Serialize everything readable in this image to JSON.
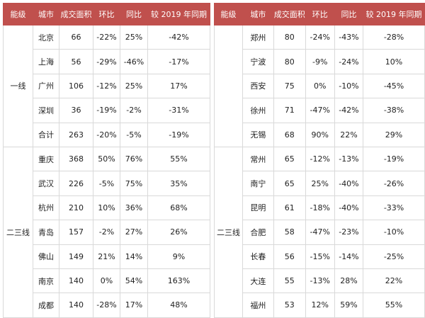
{
  "left": {
    "headers": [
      "能级",
      "城市",
      "成交面积",
      "环比",
      "同比",
      "较 2019 年同期"
    ],
    "groups": [
      {
        "tier": "一线",
        "rows": [
          [
            "北京",
            "66",
            "-22%",
            "25%",
            "-42%"
          ],
          [
            "上海",
            "56",
            "-29%",
            "-46%",
            "-17%"
          ],
          [
            "广州",
            "106",
            "-12%",
            "25%",
            "17%"
          ],
          [
            "深圳",
            "36",
            "-19%",
            "-2%",
            "-31%"
          ],
          [
            "合计",
            "263",
            "-20%",
            "-5%",
            "-19%"
          ]
        ]
      },
      {
        "tier": "二三线",
        "rows": [
          [
            "重庆",
            "368",
            "50%",
            "76%",
            "55%"
          ],
          [
            "武汉",
            "226",
            "-5%",
            "75%",
            "35%"
          ],
          [
            "杭州",
            "210",
            "10%",
            "36%",
            "68%"
          ],
          [
            "青岛",
            "157",
            "-2%",
            "27%",
            "26%"
          ],
          [
            "佛山",
            "149",
            "21%",
            "14%",
            "9%"
          ],
          [
            "南京",
            "140",
            "0%",
            "54%",
            "163%"
          ],
          [
            "成都",
            "140",
            "-28%",
            "17%",
            "48%"
          ]
        ]
      }
    ]
  },
  "right": {
    "headers": [
      "能级",
      "城市",
      "成交面积",
      "环比",
      "同比",
      "较 2019 年同期"
    ],
    "groups": [
      {
        "tier": "",
        "rows": [
          [
            "郑州",
            "80",
            "-24%",
            "-43%",
            "-28%"
          ],
          [
            "宁波",
            "80",
            "-9%",
            "-24%",
            "10%"
          ],
          [
            "西安",
            "75",
            "0%",
            "-10%",
            "-45%"
          ],
          [
            "徐州",
            "71",
            "-47%",
            "-42%",
            "-38%"
          ],
          [
            "无锡",
            "68",
            "90%",
            "22%",
            "29%"
          ]
        ]
      },
      {
        "tier": "二三线",
        "rows": [
          [
            "常州",
            "65",
            "-12%",
            "-13%",
            "-19%"
          ],
          [
            "南宁",
            "65",
            "25%",
            "-40%",
            "-26%"
          ],
          [
            "昆明",
            "61",
            "-18%",
            "-40%",
            "-33%"
          ],
          [
            "合肥",
            "58",
            "-47%",
            "-23%",
            "-10%"
          ],
          [
            "长春",
            "56",
            "-15%",
            "-14%",
            "-25%"
          ],
          [
            "大连",
            "55",
            "-13%",
            "28%",
            "22%"
          ],
          [
            "福州",
            "53",
            "12%",
            "59%",
            "55%"
          ]
        ]
      }
    ]
  },
  "colors": {
    "header_bg": "#c0504d",
    "header_text": "#ffffff",
    "grid": "#d9d9d9"
  }
}
